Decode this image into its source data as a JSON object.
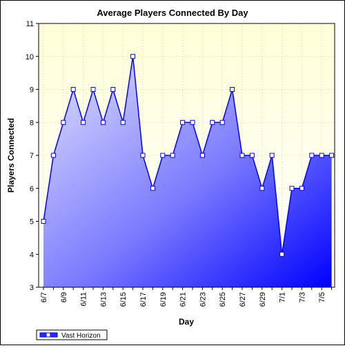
{
  "chart_data": {
    "type": "area",
    "title": "Average Players Connected By Day",
    "xlabel": "Day",
    "ylabel": "Players Connected",
    "ylim": [
      3,
      11
    ],
    "yticks": [
      3,
      4,
      5,
      6,
      7,
      8,
      9,
      10,
      11
    ],
    "x": [
      "6/7",
      "6/8",
      "6/9",
      "6/10",
      "6/11",
      "6/12",
      "6/13",
      "6/14",
      "6/15",
      "6/16",
      "6/17",
      "6/18",
      "6/19",
      "6/20",
      "6/21",
      "6/22",
      "6/23",
      "6/24",
      "6/25",
      "6/26",
      "6/27",
      "6/28",
      "6/29",
      "6/30",
      "7/1",
      "7/2",
      "7/3",
      "7/4",
      "7/5",
      "7/6"
    ],
    "xtick_labels": [
      "6/7",
      "6/9",
      "6/11",
      "6/13",
      "6/15",
      "6/17",
      "6/19",
      "6/21",
      "6/23",
      "6/25",
      "6/27",
      "6/29",
      "7/1",
      "7/3",
      "7/5"
    ],
    "series": [
      {
        "name": "Vast Horizon",
        "values": [
          5,
          7,
          8,
          9,
          8,
          9,
          8,
          9,
          8,
          10,
          7,
          6,
          7,
          7,
          8,
          8,
          7,
          8,
          8,
          9,
          7,
          7,
          6,
          7,
          4,
          6,
          6,
          7,
          7,
          7
        ]
      }
    ],
    "grid": true,
    "legend_position": "bottom-left",
    "colors": {
      "plot_background_top": "#ffffdc",
      "line": "#0000ff",
      "fill_light": "#dcdcff",
      "fill_dark": "#0000ff",
      "grid": "#d8d8b0"
    }
  }
}
